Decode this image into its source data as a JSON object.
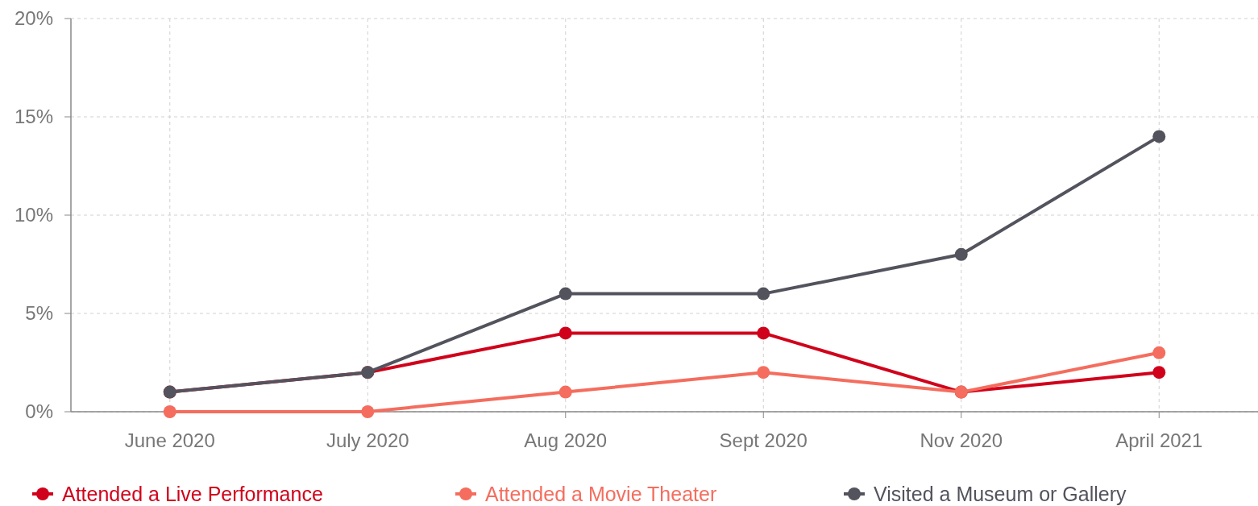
{
  "chart_data": {
    "type": "line",
    "categories": [
      "June 2020",
      "July 2020",
      "Aug 2020",
      "Sept 2020",
      "Nov 2020",
      "April 2021"
    ],
    "series": [
      {
        "name": "Attended a Live Performance",
        "color": "#d0021b",
        "values": [
          1,
          2,
          4,
          4,
          1,
          2
        ]
      },
      {
        "name": "Attended a Movie Theater",
        "color": "#f46d5e",
        "values": [
          0,
          0,
          1,
          2,
          1,
          3
        ]
      },
      {
        "name": "Visited a Museum or Gallery",
        "color": "#53535e",
        "values": [
          1,
          2,
          6,
          6,
          8,
          14
        ]
      }
    ],
    "ylim": [
      0,
      20
    ],
    "yticks": [
      {
        "value": 0,
        "label": "0%"
      },
      {
        "value": 5,
        "label": "5%"
      },
      {
        "value": 10,
        "label": "10%"
      },
      {
        "value": 15,
        "label": "15%"
      },
      {
        "value": 20,
        "label": "20%"
      }
    ],
    "grid": true,
    "legend": "bottom",
    "marker": "circle",
    "line_style": "solid"
  }
}
